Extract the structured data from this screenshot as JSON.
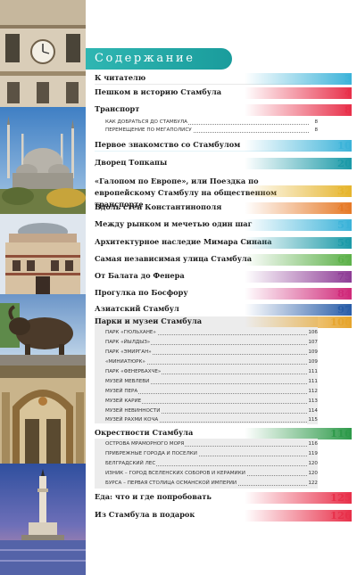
{
  "title": "Содержание",
  "photo_strip": [
    "clock-building",
    "blue-mosque",
    "pavilion-dome",
    "bronze-bull",
    "mosaic-gate",
    "maiden-tower"
  ],
  "entries": [
    {
      "title": "К читателю",
      "page": "3",
      "color": "#3cb3d9"
    },
    {
      "title": "Пешком в историю Стамбула",
      "page": "4",
      "color": "#e8304a"
    },
    {
      "title": "Транспорт",
      "page": "8",
      "color": "#e8304a",
      "subs": [
        {
          "label": "КАК ДОБРАТЬСЯ ДО СТАМБУЛА",
          "page": "8"
        },
        {
          "label": "ПЕРЕМЕЩЕНИЕ ПО МЕГАПОЛИСУ",
          "page": "8"
        }
      ]
    },
    {
      "title": "Первое знакомство со Стамбулом",
      "page": "10",
      "color": "#3cb3d9"
    },
    {
      "title": "Дворец Топкапы",
      "page": "20",
      "color": "#1c9aa8"
    },
    {
      "title": "«Галопом по Европе», или Поездка по европейскому Стамбулу на общественном транспорте",
      "page": "32",
      "color": "#e6b52e"
    },
    {
      "title": "Вдоль стен Константинополя",
      "page": "43",
      "color": "#e67a28"
    },
    {
      "title": "Между рынком и мечетью один шаг",
      "page": "51",
      "color": "#3cb3d9"
    },
    {
      "title": "Архитектурное наследие Мимара Синана",
      "page": "59",
      "color": "#1c9aa8"
    },
    {
      "title": "Самая независимая улица Стамбула",
      "page": "67",
      "color": "#5db14a"
    },
    {
      "title": "От Балата до Фенера",
      "page": "75",
      "color": "#8e3d96"
    },
    {
      "title": "Прогулка по Босфору",
      "page": "84",
      "color": "#d02a7a"
    },
    {
      "title": "Азиатский Стамбул",
      "page": "97",
      "color": "#2a5da8"
    },
    {
      "title": "Парки и музеи Стамбула",
      "page": "106",
      "color": "#e6a52e",
      "subs": [
        {
          "label": "ПАРК «ГЮЛЬХАНЕ»",
          "page": "106"
        },
        {
          "label": "ПАРК «ЙЫЛДЫЗ»",
          "page": "107"
        },
        {
          "label": "ПАРК «ЭМИРГАН»",
          "page": "109"
        },
        {
          "label": "«МИНИАТЮРК»",
          "page": "109"
        },
        {
          "label": "ПАРК «ФЕНЕРБАХЧЕ»",
          "page": "111"
        },
        {
          "label": "МУЗЕЙ МЕВЛЕВИ",
          "page": "111"
        },
        {
          "label": "МУЗЕЙ ПЕРА",
          "page": "112"
        },
        {
          "label": "МУЗЕЙ КАРИЕ",
          "page": "113"
        },
        {
          "label": "МУЗЕЙ НЕВИННОСТИ",
          "page": "114"
        },
        {
          "label": "МУЗЕЙ РАХМИ КОЧА",
          "page": "115"
        }
      ]
    },
    {
      "title": "Окрестности Стамбула",
      "page": "116",
      "color": "#2e9a4a",
      "subs": [
        {
          "label": "ОСТРОВА МРАМОРНОГО МОРЯ",
          "page": "116"
        },
        {
          "label": "ПРИБРЕЖНЫЕ ГОРОДА И ПОСЕЛКИ",
          "page": "119"
        },
        {
          "label": "БЕЛГРАДСКИЙ ЛЕС",
          "page": "120"
        },
        {
          "label": "ИЗНИК – ГОРОД ВСЕЛЕНСКИХ СОБОРОВ И КЕРАМИКИ",
          "page": "120"
        },
        {
          "label": "БУРСА – ПЕРВАЯ СТОЛИЦА ОСМАНСКОЙ ИМПЕРИИ",
          "page": "122"
        }
      ]
    },
    {
      "title": "Еда: что и где попробовать",
      "page": "125",
      "color": "#e8304a"
    },
    {
      "title": "Из Стамбула в подарок",
      "page": "126",
      "color": "#e8304a"
    }
  ]
}
